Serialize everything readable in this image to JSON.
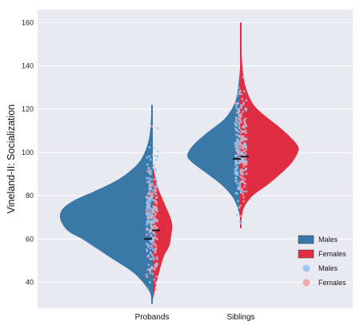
{
  "chart_data": {
    "type": "violin",
    "ylabel": "Vineland-II: Socialization",
    "ylim": [
      28,
      166
    ],
    "yticks": [
      40,
      60,
      80,
      100,
      120,
      140,
      160
    ],
    "categories": [
      "Probands",
      "Siblings"
    ],
    "grid": true,
    "legend_position": "bottom-right",
    "legend": [
      "Males",
      "Females",
      "Males",
      "Females"
    ],
    "colors": {
      "background": "#e9e9f2",
      "males": "#3a78a8",
      "females": "#e02d41",
      "males_points": "#9cc8ef",
      "females_points": "#f4a7ad",
      "median": "#1a1a1a"
    },
    "violins": [
      {
        "category": "Probands",
        "range": [
          30,
          122
        ],
        "males_median": 60,
        "females_median": 64,
        "males_density": [
          [
            30,
            0.0
          ],
          [
            35,
            0.02
          ],
          [
            40,
            0.1
          ],
          [
            45,
            0.22
          ],
          [
            50,
            0.4
          ],
          [
            55,
            0.58
          ],
          [
            60,
            0.76
          ],
          [
            63,
            0.89
          ],
          [
            66,
            0.96
          ],
          [
            70,
            1.0
          ],
          [
            74,
            0.97
          ],
          [
            78,
            0.84
          ],
          [
            82,
            0.63
          ],
          [
            86,
            0.43
          ],
          [
            90,
            0.28
          ],
          [
            95,
            0.15
          ],
          [
            100,
            0.08
          ],
          [
            105,
            0.04
          ],
          [
            110,
            0.02
          ],
          [
            116,
            0.01
          ],
          [
            122,
            0.0
          ]
        ],
        "females_density": [
          [
            30,
            0.0
          ],
          [
            38,
            0.04
          ],
          [
            45,
            0.08
          ],
          [
            52,
            0.13
          ],
          [
            57,
            0.19
          ],
          [
            62,
            0.21
          ],
          [
            66,
            0.22
          ],
          [
            70,
            0.2
          ],
          [
            74,
            0.16
          ],
          [
            78,
            0.12
          ],
          [
            83,
            0.07
          ],
          [
            88,
            0.04
          ],
          [
            94,
            0.01
          ],
          [
            98,
            0.0
          ]
        ]
      },
      {
        "category": "Siblings",
        "range": [
          65,
          160
        ],
        "males_median": 97,
        "females_median": 98,
        "males_density": [
          [
            65,
            0.0
          ],
          [
            70,
            0.01
          ],
          [
            75,
            0.04
          ],
          [
            80,
            0.1
          ],
          [
            85,
            0.21
          ],
          [
            90,
            0.36
          ],
          [
            95,
            0.52
          ],
          [
            98,
            0.58
          ],
          [
            101,
            0.56
          ],
          [
            105,
            0.48
          ],
          [
            110,
            0.34
          ],
          [
            115,
            0.19
          ],
          [
            120,
            0.1
          ],
          [
            125,
            0.05
          ],
          [
            130,
            0.03
          ],
          [
            138,
            0.01
          ],
          [
            146,
            0.0
          ]
        ],
        "females_density": [
          [
            65,
            0.0
          ],
          [
            70,
            0.01
          ],
          [
            75,
            0.04
          ],
          [
            80,
            0.13
          ],
          [
            85,
            0.29
          ],
          [
            90,
            0.43
          ],
          [
            95,
            0.55
          ],
          [
            100,
            0.62
          ],
          [
            103,
            0.62
          ],
          [
            107,
            0.54
          ],
          [
            112,
            0.41
          ],
          [
            117,
            0.26
          ],
          [
            122,
            0.14
          ],
          [
            128,
            0.07
          ],
          [
            135,
            0.03
          ],
          [
            145,
            0.01
          ],
          [
            160,
            0.0
          ]
        ]
      }
    ]
  }
}
